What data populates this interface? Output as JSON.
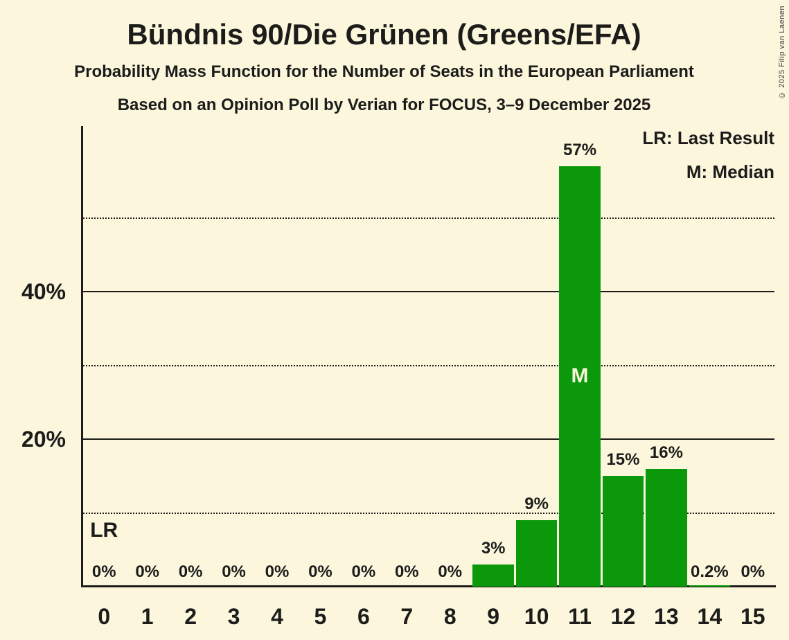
{
  "title": "Bündnis 90/Die Grünen (Greens/EFA)",
  "subtitles": [
    "Probability Mass Function for the Number of Seats in the European Parliament",
    "Based on an Opinion Poll by Verian for FOCUS, 3–9 December 2025"
  ],
  "copyright": "© 2025 Filip van Laenen",
  "legend": {
    "lr_label": "LR: Last Result",
    "m_label": "M: Median"
  },
  "colors": {
    "background": "#FCF6DD",
    "bar": "#0B990B",
    "text": "#1C1C1A",
    "marker_on_bar": "#FCF6DD"
  },
  "chart_data": {
    "type": "bar",
    "categories": [
      "0",
      "1",
      "2",
      "3",
      "4",
      "5",
      "6",
      "7",
      "8",
      "9",
      "10",
      "11",
      "12",
      "13",
      "14",
      "15"
    ],
    "values": [
      0,
      0,
      0,
      0,
      0,
      0,
      0,
      0,
      0,
      3,
      9,
      57,
      15,
      16,
      0.2,
      0
    ],
    "bar_labels": [
      "0%",
      "0%",
      "0%",
      "0%",
      "0%",
      "0%",
      "0%",
      "0%",
      "0%",
      "3%",
      "9%",
      "57%",
      "15%",
      "16%",
      "0.2%",
      "0%"
    ],
    "yticks": [
      {
        "value": 20,
        "label": "20%"
      },
      {
        "value": 40,
        "label": "40%"
      }
    ],
    "gridlines": [
      {
        "value": 10,
        "style": "dotted"
      },
      {
        "value": 20,
        "style": "solid"
      },
      {
        "value": 30,
        "style": "dotted"
      },
      {
        "value": 40,
        "style": "solid"
      },
      {
        "value": 50,
        "style": "dotted"
      }
    ],
    "ylim": [
      0,
      62.4
    ],
    "median_seats": 11,
    "median_marker": "M",
    "last_result_seats": 0,
    "last_result_marker": "LR",
    "legend_position": "top-right",
    "grid": "horizontal-only"
  }
}
